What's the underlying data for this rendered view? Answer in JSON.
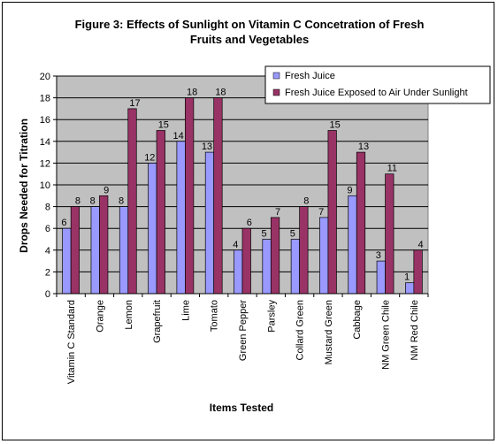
{
  "chart_data": {
    "type": "bar",
    "title_lines": [
      "Figure 3: Effects of Sunlight on Vitamin C Concetration of Fresh",
      "Fruits and Vegetables"
    ],
    "xlabel": "Items Tested",
    "ylabel": "Drops Needed for Titration",
    "ylim": [
      0,
      20
    ],
    "yticks": [
      0,
      2,
      4,
      6,
      8,
      10,
      12,
      14,
      16,
      18,
      20
    ],
    "grid": true,
    "legend_position": "top-right",
    "categories": [
      "Vitamin C Standard",
      "Orange",
      "Lemon",
      "Grapefruit",
      "Lime",
      "Tomato",
      "Green Pepper",
      "Parsley",
      "Collard Green",
      "Mustard Green",
      "Cabbage",
      "NM Green Chile",
      "NM Red Chile"
    ],
    "series": [
      {
        "name": "Fresh Juice",
        "color": "#9999ff",
        "values": [
          6,
          8,
          8,
          12,
          14,
          13,
          4,
          5,
          5,
          7,
          9,
          3,
          1
        ]
      },
      {
        "name": "Fresh Juice Exposed to Air Under Sunlight",
        "color": "#993366",
        "values": [
          8,
          9,
          17,
          15,
          18,
          18,
          6,
          7,
          8,
          15,
          13,
          11,
          4
        ]
      }
    ],
    "plot_background": "#c0c0c0"
  }
}
